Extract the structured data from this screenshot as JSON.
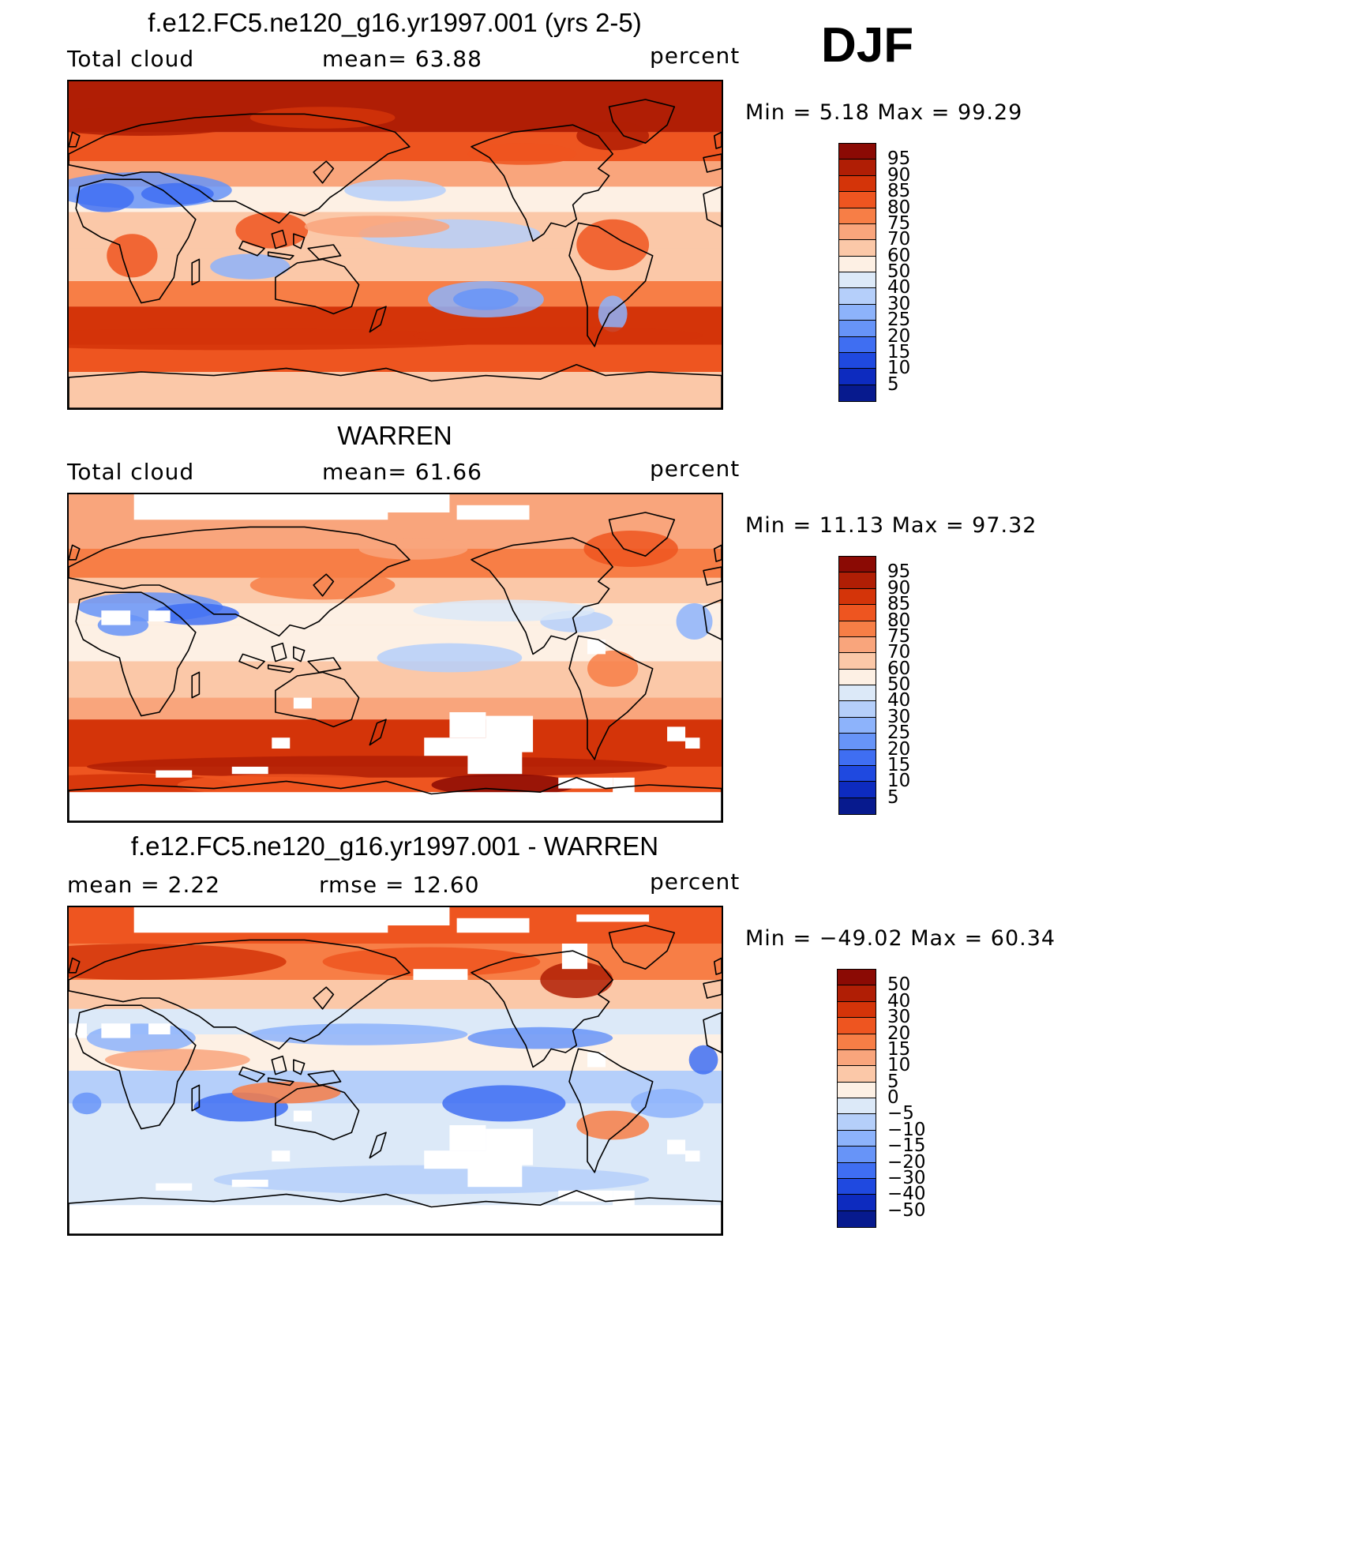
{
  "season": "DJF",
  "panels": [
    {
      "title": "f.e12.FC5.ne120_g16.yr1997.001 (yrs 2-5)",
      "left_label": "Total cloud",
      "center_label": "mean=   63.88",
      "right_label": "percent",
      "minmax": "Min =    5.18 Max =   99.29",
      "colorbar": {
        "labels": [
          "95",
          "90",
          "85",
          "80",
          "75",
          "70",
          "60",
          "50",
          "40",
          "30",
          "25",
          "20",
          "15",
          "10",
          "5"
        ],
        "colors": [
          "#8b0a04",
          "#b01e05",
          "#d43409",
          "#ee5520",
          "#f77e46",
          "#f9a57c",
          "#fbc8a8",
          "#fdf0e4",
          "#dce9f8",
          "#b5cffa",
          "#8db3fb",
          "#6794f8",
          "#3f6ef2",
          "#1f49e0",
          "#0d2bbf",
          "#071a8e"
        ]
      },
      "map": {
        "style": "model"
      }
    },
    {
      "title": "WARREN",
      "left_label": "Total cloud",
      "center_label": "mean=   61.66",
      "right_label": "percent",
      "minmax": "Min =   11.13 Max =   97.32",
      "colorbar": {
        "labels": [
          "95",
          "90",
          "85",
          "80",
          "75",
          "70",
          "60",
          "50",
          "40",
          "30",
          "25",
          "20",
          "15",
          "10",
          "5"
        ],
        "colors": [
          "#8b0a04",
          "#b01e05",
          "#d43409",
          "#ee5520",
          "#f77e46",
          "#f9a57c",
          "#fbc8a8",
          "#fdf0e4",
          "#dce9f8",
          "#b5cffa",
          "#8db3fb",
          "#6794f8",
          "#3f6ef2",
          "#1f49e0",
          "#0d2bbf",
          "#071a8e"
        ]
      },
      "map": {
        "style": "obs"
      }
    },
    {
      "title": "f.e12.FC5.ne120_g16.yr1997.001 - WARREN",
      "left_label": "mean =     2.22",
      "center_label": "rmse =    12.60",
      "right_label": "percent",
      "minmax": "Min = −49.02 Max =   60.34",
      "colorbar": {
        "labels": [
          "50",
          "40",
          "30",
          "20",
          "15",
          "10",
          "5",
          "0",
          "−5",
          "−10",
          "−15",
          "−20",
          "−30",
          "−40",
          "−50"
        ],
        "colors": [
          "#8b0a04",
          "#b01e05",
          "#d43409",
          "#ee5520",
          "#f77e46",
          "#f9a57c",
          "#fbc8a8",
          "#fdf0e4",
          "#dce9f8",
          "#b5cffa",
          "#8db3fb",
          "#6794f8",
          "#3f6ef2",
          "#1f49e0",
          "#0d2bbf",
          "#071a8e"
        ]
      },
      "map": {
        "style": "diff"
      }
    }
  ]
}
